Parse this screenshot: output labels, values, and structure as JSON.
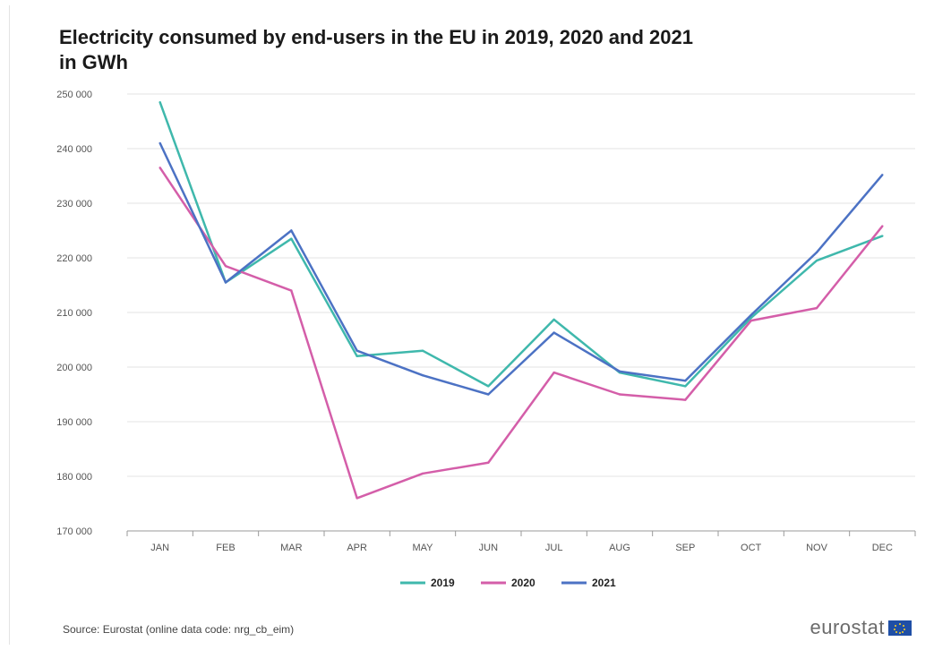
{
  "chart_data": {
    "type": "line",
    "title_line1": "Electricity consumed by end-users in the EU in 2019, 2020 and 2021",
    "title_line2": "in GWh",
    "categories": [
      "JAN",
      "FEB",
      "MAR",
      "APR",
      "MAY",
      "JUN",
      "JUL",
      "AUG",
      "SEP",
      "OCT",
      "NOV",
      "DEC"
    ],
    "yticks": [
      "170 000",
      "180 000",
      "190 000",
      "200 000",
      "210 000",
      "220 000",
      "230 000",
      "240 000",
      "250 000"
    ],
    "ylim": [
      170000,
      250000
    ],
    "grid": true,
    "legend_position": "bottom",
    "series": [
      {
        "name": "2019",
        "color": "#3fb8ac",
        "values": [
          248500,
          215500,
          223500,
          202000,
          203000,
          196500,
          208700,
          199000,
          196500,
          209000,
          219500,
          224000
        ]
      },
      {
        "name": "2020",
        "color": "#d45ea9",
        "values": [
          236500,
          218500,
          214000,
          176000,
          180500,
          182500,
          199000,
          195000,
          194000,
          208500,
          210800,
          225800
        ]
      },
      {
        "name": "2021",
        "color": "#4c72c4",
        "values": [
          241000,
          215500,
          225000,
          203000,
          198500,
          195000,
          206300,
          199200,
          197500,
          209500,
          221000,
          235200
        ]
      }
    ]
  },
  "source_text": "Source: Eurostat (online data code: nrg_cb_eim)",
  "logo_text": "eurostat"
}
